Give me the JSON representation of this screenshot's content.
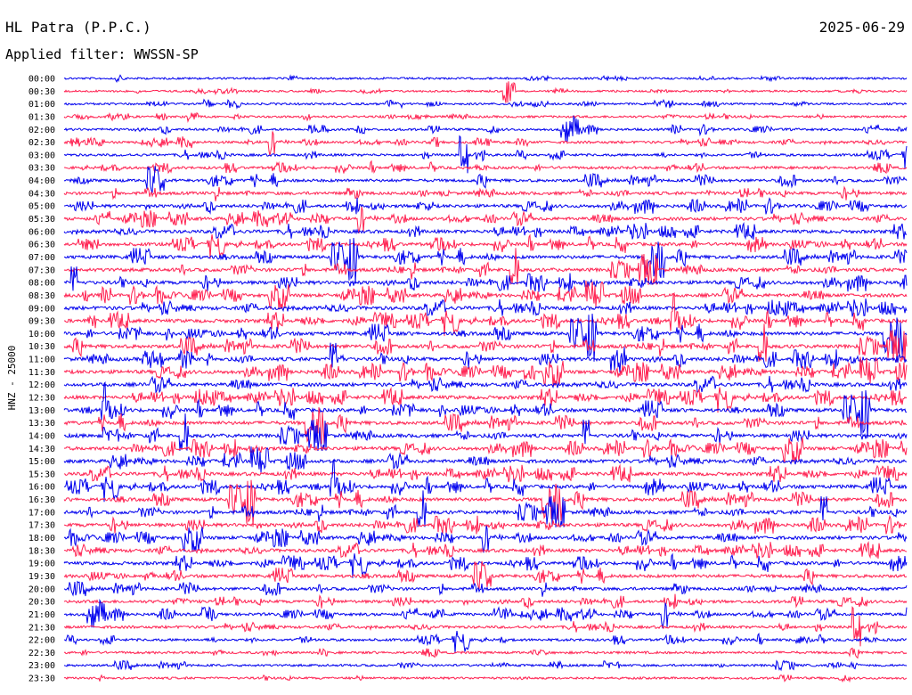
{
  "header": {
    "station": "HL Patra (P.P.C.)",
    "date": "2025-06-29",
    "filter": "Applied filter: WWSSN-SP"
  },
  "chart_data": {
    "type": "line",
    "title": "HL Patra (P.P.C.)",
    "ylabel": "HNZ - 25000",
    "row_labels": [
      "00:00",
      "00:30",
      "01:00",
      "01:30",
      "02:00",
      "02:30",
      "03:00",
      "03:30",
      "04:00",
      "04:30",
      "05:00",
      "05:30",
      "06:00",
      "06:30",
      "07:00",
      "07:30",
      "08:00",
      "08:30",
      "09:00",
      "09:30",
      "10:00",
      "10:30",
      "11:00",
      "11:30",
      "12:00",
      "12:30",
      "13:00",
      "13:30",
      "14:00",
      "14:30",
      "15:00",
      "15:30",
      "16:00",
      "16:30",
      "17:00",
      "17:30",
      "18:00",
      "18:30",
      "19:00",
      "19:30",
      "20:00",
      "20:30",
      "21:00",
      "21:30",
      "22:00",
      "22:30",
      "23:00",
      "23:30"
    ],
    "trace_colors": [
      "#0000ee",
      "#ff2050"
    ],
    "relative_activity": [
      0.35,
      0.35,
      0.38,
      0.42,
      0.5,
      0.55,
      0.55,
      0.6,
      0.7,
      0.75,
      0.8,
      0.82,
      0.85,
      0.85,
      0.88,
      0.9,
      0.92,
      0.92,
      0.95,
      0.95,
      0.95,
      0.95,
      0.95,
      0.95,
      0.95,
      0.95,
      0.95,
      0.92,
      0.92,
      0.9,
      0.9,
      0.9,
      0.92,
      0.92,
      0.9,
      0.9,
      0.88,
      0.85,
      0.85,
      0.8,
      0.75,
      0.72,
      0.68,
      0.62,
      0.55,
      0.5,
      0.45,
      0.42
    ]
  }
}
